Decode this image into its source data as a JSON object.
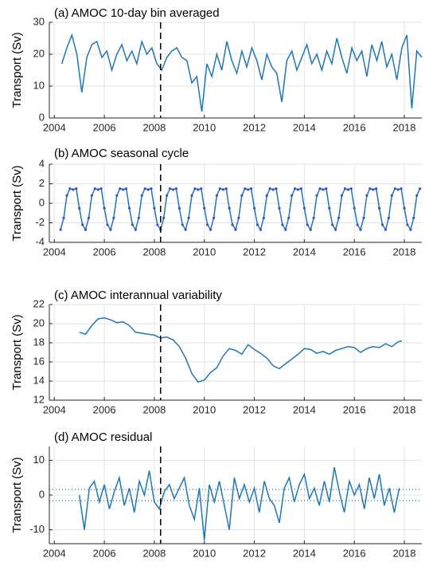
{
  "chart_data": [
    {
      "type": "line",
      "title": "(a) AMOC 10-day bin averaged",
      "ylabel": "Transport (Sv)",
      "color": "#1f77b4",
      "grid": true,
      "xlim": [
        2003.8,
        2018.7
      ],
      "xticks": [
        2004,
        2006,
        2008,
        2010,
        2012,
        2014,
        2016,
        2018
      ],
      "ylim": [
        0,
        30
      ],
      "yticks": [
        0,
        10,
        20,
        30
      ],
      "vline": 2008.25,
      "x": [
        2004.3,
        2004.5,
        2004.7,
        2004.9,
        2005.1,
        2005.3,
        2005.5,
        2005.7,
        2005.9,
        2006.1,
        2006.3,
        2006.5,
        2006.7,
        2006.9,
        2007.1,
        2007.3,
        2007.5,
        2007.7,
        2007.9,
        2008.1,
        2008.3,
        2008.5,
        2008.7,
        2008.9,
        2009.1,
        2009.3,
        2009.5,
        2009.7,
        2009.9,
        2010.1,
        2010.3,
        2010.5,
        2010.7,
        2010.9,
        2011.1,
        2011.3,
        2011.5,
        2011.7,
        2011.9,
        2012.1,
        2012.3,
        2012.5,
        2012.7,
        2012.9,
        2013.1,
        2013.3,
        2013.5,
        2013.7,
        2013.9,
        2014.1,
        2014.3,
        2014.5,
        2014.7,
        2014.9,
        2015.1,
        2015.3,
        2015.5,
        2015.7,
        2015.9,
        2016.1,
        2016.3,
        2016.5,
        2016.7,
        2016.9,
        2017.1,
        2017.3,
        2017.5,
        2017.7,
        2017.9,
        2018.1,
        2018.3,
        2018.5,
        2018.7
      ],
      "values": [
        17,
        22,
        26,
        20,
        8,
        19,
        23,
        24,
        19,
        21,
        15,
        20,
        23,
        18,
        21,
        17,
        24,
        20,
        22,
        17,
        15,
        19,
        21,
        22,
        19,
        18,
        11,
        13,
        2,
        17,
        13,
        20,
        15,
        24,
        18,
        14,
        21,
        16,
        22,
        18,
        12,
        20,
        16,
        14,
        5,
        18,
        21,
        15,
        19,
        23,
        17,
        20,
        15,
        21,
        17,
        25,
        19,
        14,
        22,
        18,
        21,
        13,
        23,
        18,
        24,
        16,
        20,
        12,
        22,
        26,
        3,
        21,
        19
      ]
    },
    {
      "type": "line",
      "title": "(b) AMOC seasonal cycle",
      "ylabel": "Transport (Sv)",
      "color": "#1f77b4",
      "grid": true,
      "markers": true,
      "xlim": [
        2003.8,
        2018.7
      ],
      "xticks": [
        2004,
        2006,
        2008,
        2010,
        2012,
        2014,
        2016,
        2018
      ],
      "ylim": [
        -4,
        4
      ],
      "yticks": [
        -4,
        -2,
        0,
        2,
        4
      ],
      "vline": 2008.25,
      "x": [
        2004.25,
        2004.375,
        2004.5,
        2004.625,
        2004.75,
        2004.875,
        2005,
        2005.125,
        2005.25,
        2005.375,
        2005.5,
        2005.625,
        2005.75,
        2005.875,
        2006,
        2006.125,
        2006.25,
        2006.375,
        2006.5,
        2006.625,
        2006.75,
        2006.875,
        2007,
        2007.125,
        2007.25,
        2007.375,
        2007.5,
        2007.625,
        2007.75,
        2007.875,
        2008,
        2008.125,
        2008.25,
        2008.375,
        2008.5,
        2008.625,
        2008.75,
        2008.875,
        2009,
        2009.125,
        2009.25,
        2009.375,
        2009.5,
        2009.625,
        2009.75,
        2009.875,
        2010,
        2010.125,
        2010.25,
        2010.375,
        2010.5,
        2010.625,
        2010.75,
        2010.875,
        2011,
        2011.125,
        2011.25,
        2011.375,
        2011.5,
        2011.625,
        2011.75,
        2011.875,
        2012,
        2012.125,
        2012.25,
        2012.375,
        2012.5,
        2012.625,
        2012.75,
        2012.875,
        2013,
        2013.125,
        2013.25,
        2013.375,
        2013.5,
        2013.625,
        2013.75,
        2013.875,
        2014,
        2014.125,
        2014.25,
        2014.375,
        2014.5,
        2014.625,
        2014.75,
        2014.875,
        2015,
        2015.125,
        2015.25,
        2015.375,
        2015.5,
        2015.625,
        2015.75,
        2015.875,
        2016,
        2016.125,
        2016.25,
        2016.375,
        2016.5,
        2016.625,
        2016.75,
        2016.875,
        2017,
        2017.125,
        2017.25,
        2017.375,
        2017.5,
        2017.625,
        2017.75,
        2017.875,
        2018,
        2018.125,
        2018.25,
        2018.375,
        2018.5,
        2018.625
      ],
      "values": [
        -2.7,
        -1.5,
        0.8,
        1.5,
        1.4,
        1.5,
        -0.5,
        -2.2,
        -2.7,
        -1.5,
        0.8,
        1.5,
        1.4,
        1.5,
        -0.5,
        -2.2,
        -2.7,
        -1.5,
        0.8,
        1.5,
        1.4,
        1.5,
        -0.5,
        -2.2,
        -2.7,
        -1.5,
        0.8,
        1.5,
        1.4,
        1.5,
        -0.5,
        -2.2,
        -2.7,
        -1.5,
        0.8,
        1.5,
        1.4,
        1.5,
        -0.5,
        -2.2,
        -2.7,
        -1.5,
        0.8,
        1.5,
        1.4,
        1.5,
        -0.5,
        -2.2,
        -2.7,
        -1.5,
        0.8,
        1.5,
        1.4,
        1.5,
        -0.5,
        -2.2,
        -2.7,
        -1.5,
        0.8,
        1.5,
        1.4,
        1.5,
        -0.5,
        -2.2,
        -2.7,
        -1.5,
        0.8,
        1.5,
        1.4,
        1.5,
        -0.5,
        -2.2,
        -2.7,
        -1.5,
        0.8,
        1.5,
        1.4,
        1.5,
        -0.5,
        -2.2,
        -2.7,
        -1.5,
        0.8,
        1.5,
        1.4,
        1.5,
        -0.5,
        -2.2,
        -2.7,
        -1.5,
        0.8,
        1.5,
        1.4,
        1.5,
        -0.5,
        -2.2,
        -2.7,
        -1.5,
        0.8,
        1.5,
        1.4,
        1.5,
        -0.5,
        -2.2,
        -2.7,
        -1.5,
        0.8,
        1.5,
        1.4,
        1.5,
        -0.5,
        -2.2,
        -2.7,
        -1.5,
        0.8,
        1.5
      ]
    },
    {
      "type": "line",
      "title": "(c) AMOC interannual variability",
      "ylabel": "Transport (Sv)",
      "color": "#1f77b4",
      "grid": true,
      "xlim": [
        2003.8,
        2018.7
      ],
      "xticks": [
        2004,
        2006,
        2008,
        2010,
        2012,
        2014,
        2016,
        2018
      ],
      "ylim": [
        12,
        22
      ],
      "yticks": [
        12,
        14,
        16,
        18,
        20,
        22
      ],
      "vline": 2008.25,
      "x": [
        2005,
        2005.25,
        2005.5,
        2005.75,
        2006,
        2006.25,
        2006.5,
        2006.75,
        2007,
        2007.25,
        2007.5,
        2007.75,
        2008,
        2008.25,
        2008.5,
        2008.75,
        2009,
        2009.25,
        2009.5,
        2009.75,
        2010,
        2010.25,
        2010.5,
        2010.75,
        2011,
        2011.25,
        2011.5,
        2011.75,
        2012,
        2012.25,
        2012.5,
        2012.75,
        2013,
        2013.25,
        2013.5,
        2013.75,
        2014,
        2014.25,
        2014.5,
        2014.75,
        2015,
        2015.25,
        2015.5,
        2015.75,
        2016,
        2016.25,
        2016.5,
        2016.75,
        2017,
        2017.25,
        2017.5,
        2017.75,
        2017.9
      ],
      "values": [
        19.1,
        18.9,
        19.8,
        20.5,
        20.6,
        20.4,
        20.1,
        20.2,
        19.8,
        19.1,
        19.0,
        18.9,
        18.8,
        18.5,
        18.6,
        18.3,
        17.6,
        16.4,
        14.8,
        13.9,
        14.1,
        14.9,
        15.4,
        16.6,
        17.4,
        17.2,
        16.8,
        17.8,
        17.3,
        16.9,
        16.4,
        15.6,
        15.3,
        15.8,
        16.3,
        16.8,
        17.4,
        17.3,
        16.9,
        17.1,
        16.8,
        17.2,
        17.4,
        17.6,
        17.5,
        17.0,
        17.4,
        17.6,
        17.5,
        17.9,
        17.6,
        18.1,
        18.2
      ]
    },
    {
      "type": "line",
      "title": "(d) AMOC residual",
      "ylabel": "Transport (Sv)",
      "color": "#1f77b4",
      "grid": true,
      "xlim": [
        2003.8,
        2018.7
      ],
      "xticks": [
        2004,
        2006,
        2008,
        2010,
        2012,
        2014,
        2016,
        2018
      ],
      "ylim": [
        -14,
        14
      ],
      "yticks": [
        -10,
        0,
        10
      ],
      "vline": 2008.25,
      "hlines": [
        1.6,
        -1.6
      ],
      "x": [
        2005,
        2005.2,
        2005.4,
        2005.6,
        2005.8,
        2006,
        2006.2,
        2006.4,
        2006.6,
        2006.8,
        2007,
        2007.2,
        2007.4,
        2007.6,
        2007.8,
        2008,
        2008.2,
        2008.4,
        2008.6,
        2008.8,
        2009,
        2009.2,
        2009.4,
        2009.6,
        2009.8,
        2010,
        2010.2,
        2010.4,
        2010.6,
        2010.8,
        2011,
        2011.2,
        2011.4,
        2011.6,
        2011.8,
        2012,
        2012.2,
        2012.4,
        2012.6,
        2012.8,
        2013,
        2013.2,
        2013.4,
        2013.6,
        2013.8,
        2014,
        2014.2,
        2014.4,
        2014.6,
        2014.8,
        2015,
        2015.2,
        2015.4,
        2015.6,
        2015.8,
        2016,
        2016.2,
        2016.4,
        2016.6,
        2016.8,
        2017,
        2017.2,
        2017.4,
        2017.6,
        2017.8
      ],
      "values": [
        0,
        -10,
        2,
        4,
        -2,
        3,
        -4,
        1,
        5,
        -3,
        2,
        -5,
        4,
        0,
        7,
        -2,
        -4,
        1,
        3,
        -1,
        2,
        5,
        -3,
        -7,
        2,
        -13,
        3,
        -2,
        4,
        -3,
        -10,
        5,
        -1,
        3,
        -2,
        2,
        -5,
        4,
        -1,
        -3,
        -8,
        2,
        5,
        -2,
        3,
        6,
        -1,
        2,
        -3,
        4,
        -2,
        8,
        1,
        -5,
        4,
        0,
        3,
        -4,
        5,
        -1,
        6,
        -3,
        2,
        -5,
        2
      ]
    }
  ]
}
